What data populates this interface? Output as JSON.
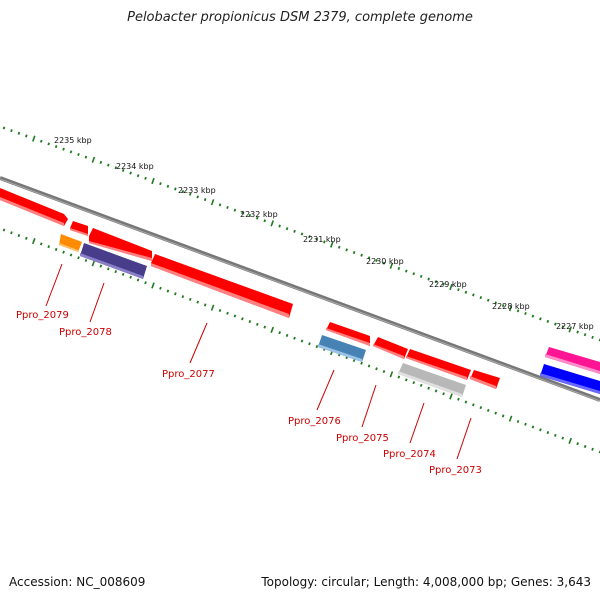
{
  "title": "Pelobacter propionicus DSM 2379, complete genome",
  "footer": {
    "accession": "Accession: NC_008609",
    "summary": "Topology: circular; Length: 4,008,000 bp; Genes: 3,643"
  },
  "ticks": [
    {
      "label": "2235 kbp"
    },
    {
      "label": "2234 kbp"
    },
    {
      "label": "2233 kbp"
    },
    {
      "label": "2232 kbp"
    },
    {
      "label": "2231 kbp"
    },
    {
      "label": "2230 kbp"
    },
    {
      "label": "2229 kbp"
    },
    {
      "label": "2228 kbp"
    },
    {
      "label": "2227 kbp"
    }
  ],
  "gene_labels": [
    {
      "name": "Ppro_2079"
    },
    {
      "name": "Ppro_2078"
    },
    {
      "name": "Ppro_2077"
    },
    {
      "name": "Ppro_2076"
    },
    {
      "name": "Ppro_2075"
    },
    {
      "name": "Ppro_2074"
    },
    {
      "name": "Ppro_2073"
    }
  ],
  "colors": {
    "backbone": "#808080",
    "tick": "#1f7a1f",
    "label": "#cc0000",
    "red": "#ff0000",
    "orange": "#ff8c00",
    "purple": "#483d8b",
    "steelblue": "#4682b4",
    "gray": "#b8b8b8",
    "pink": "#ff1493",
    "blue": "#0000ff"
  }
}
